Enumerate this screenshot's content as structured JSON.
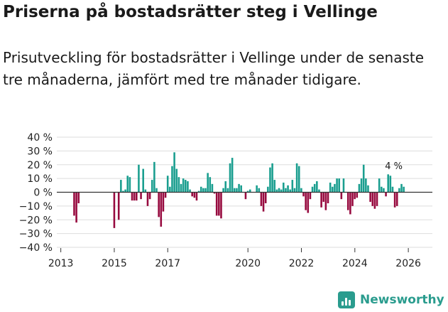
{
  "title": "Priserna på bostadsrätter steg i Vellinge",
  "subtitle": "Prisutveckling för bostadsrätter i Vellinge under de senaste tre månaderna, jämfört med tre månader tidigare.",
  "brand": "Newsworthy",
  "chart_data": {
    "type": "bar",
    "x_start": 2013.5,
    "x_step": 0.0833,
    "xlim": [
      2012.85,
      2026.9
    ],
    "ylim": [
      -40,
      40
    ],
    "y_ticks": [
      40,
      30,
      20,
      10,
      0,
      -10,
      -20,
      -30,
      -40
    ],
    "y_tick_labels": [
      "40 %",
      "30 %",
      "20 %",
      "10 %",
      "0 %",
      "−10 %",
      "−20 %",
      "−30 %",
      "−40 %"
    ],
    "x_ticks": [
      2013,
      2015,
      2017,
      2020,
      2022,
      2024,
      2026
    ],
    "x_tick_labels": [
      "2013",
      "2015",
      "2017",
      "2020",
      "2022",
      "2024",
      "2026"
    ],
    "positive_color": "#1a9e8f",
    "negative_color": "#970a3f",
    "annotation": "4 %",
    "values": [
      -17,
      -22,
      -8,
      null,
      null,
      null,
      null,
      null,
      null,
      null,
      null,
      null,
      null,
      null,
      null,
      null,
      null,
      null,
      -26,
      null,
      -20,
      9,
      1,
      2,
      12,
      11,
      -6,
      -6,
      -6,
      20,
      -5,
      17,
      2,
      -10,
      -5,
      9,
      22,
      3,
      -18,
      -25,
      -14,
      -4,
      12,
      4,
      19,
      29,
      17,
      11,
      6,
      10,
      9,
      8,
      2,
      -3,
      -4,
      -6,
      1,
      4,
      3,
      3,
      14,
      11,
      6,
      -1,
      -17,
      -17,
      -19,
      3,
      8,
      3,
      21,
      25,
      3,
      3,
      6,
      5,
      null,
      -5,
      1,
      2,
      null,
      null,
      5,
      3,
      -10,
      -14,
      -8,
      4,
      18,
      21,
      9,
      2,
      3,
      2,
      7,
      3,
      5,
      2,
      9,
      3,
      21,
      19,
      3,
      -3,
      -13,
      -15,
      -5,
      4,
      6,
      8,
      2,
      -11,
      -7,
      -13,
      -8,
      7,
      4,
      6,
      10,
      10,
      -5,
      10,
      0,
      -13,
      -16,
      -10,
      -5,
      -4,
      6,
      10,
      20,
      10,
      5,
      -7,
      -10,
      -12,
      -10,
      10,
      4,
      3,
      -3,
      13,
      12,
      4,
      -11,
      -10,
      3,
      6,
      4
    ]
  }
}
